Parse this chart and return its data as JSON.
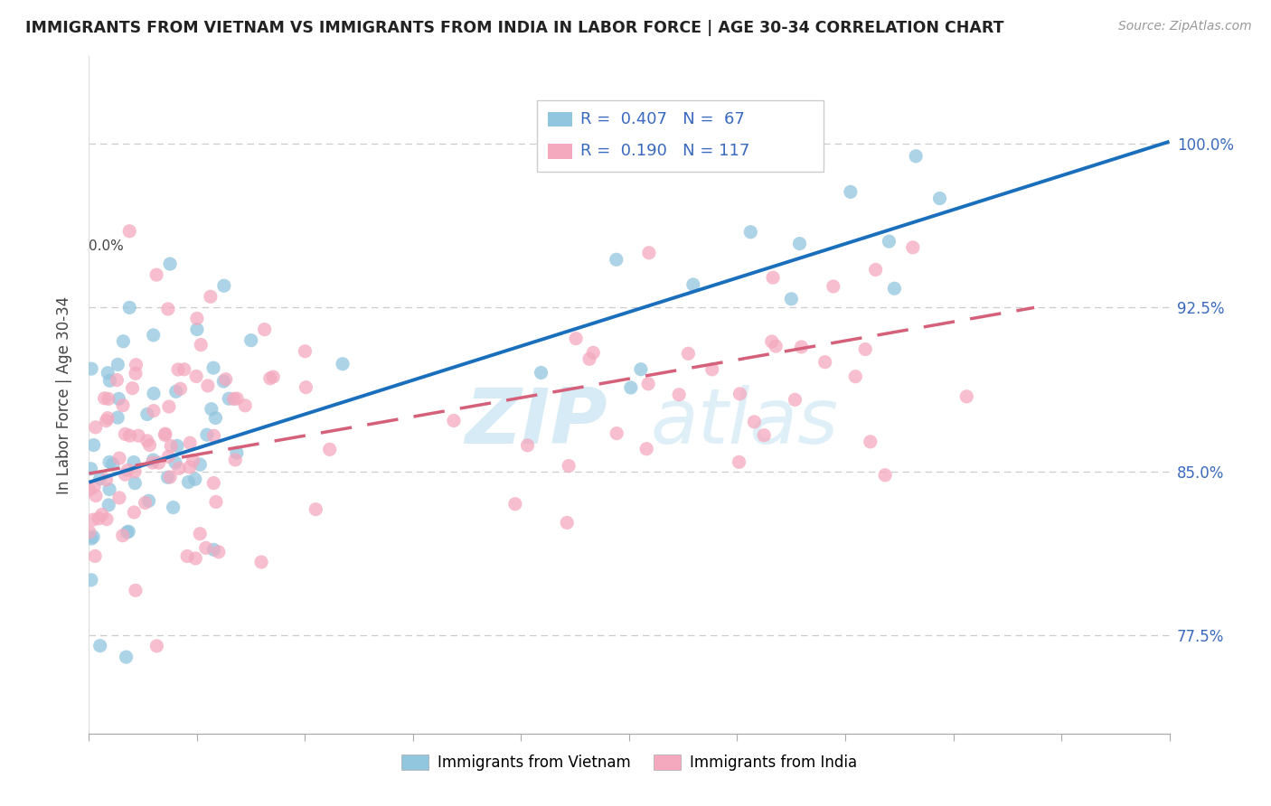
{
  "title": "IMMIGRANTS FROM VIETNAM VS IMMIGRANTS FROM INDIA IN LABOR FORCE | AGE 30-34 CORRELATION CHART",
  "source": "Source: ZipAtlas.com",
  "ylabel": "In Labor Force | Age 30-34",
  "ytick_labels": [
    "77.5%",
    "85.0%",
    "92.5%",
    "100.0%"
  ],
  "ytick_values": [
    0.775,
    0.85,
    0.925,
    1.0
  ],
  "xlim": [
    0.0,
    0.8
  ],
  "ylim": [
    0.73,
    1.04
  ],
  "xtick_positions": [
    0.0,
    0.08,
    0.16,
    0.24,
    0.32,
    0.4,
    0.48,
    0.56,
    0.64,
    0.72,
    0.8
  ],
  "legend_entry1": "R =  0.407   N =  67",
  "legend_entry2": "R =  0.190   N = 117",
  "legend_label1": "Immigrants from Vietnam",
  "legend_label2": "Immigrants from India",
  "color_vietnam": "#92c5de",
  "color_india": "#f4a9be",
  "color_vietnam_line": "#1a6fbd",
  "color_india_line": "#d4607a",
  "R_vietnam": 0.407,
  "N_vietnam": 67,
  "R_india": 0.19,
  "N_india": 117,
  "viet_line_x0": 0.0,
  "viet_line_y0": 0.845,
  "viet_line_x1": 0.8,
  "viet_line_y1": 1.001,
  "india_line_x0": 0.0,
  "india_line_y0": 0.849,
  "india_line_x1": 0.7,
  "india_line_y1": 0.925
}
